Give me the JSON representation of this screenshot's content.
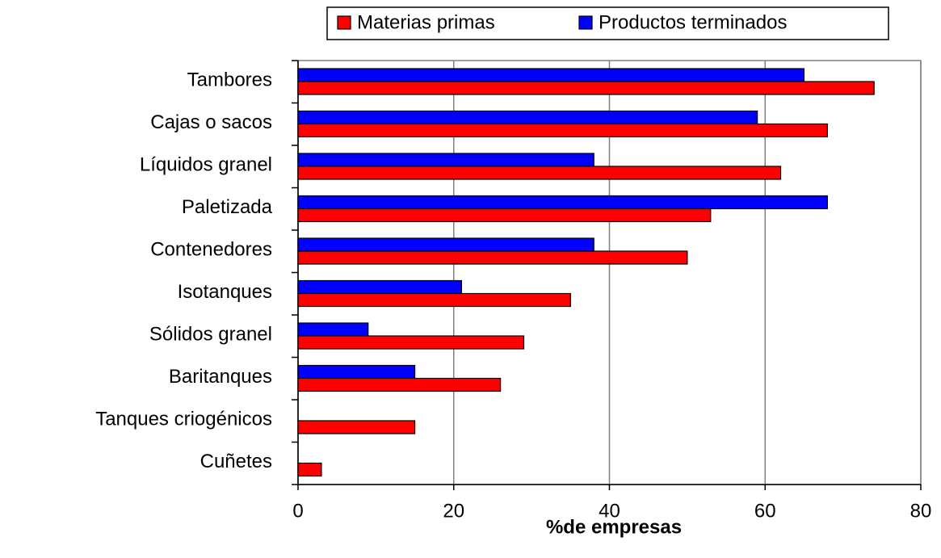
{
  "chart_data": {
    "type": "bar",
    "orientation": "horizontal",
    "x_label": "%de empresas",
    "categories": [
      "Tambores",
      "Cajas o sacos",
      "Líquidos granel",
      "Paletizada",
      "Contenedores",
      "Isotanques",
      "Sólidos granel",
      "Baritanques",
      "Tanques criogénicos",
      "Cuñetes"
    ],
    "series": [
      {
        "name": "Materias primas",
        "color": "#ff0000",
        "values": [
          74,
          68,
          62,
          53,
          50,
          35,
          29,
          26,
          15,
          3
        ]
      },
      {
        "name": "Productos terminados",
        "color": "#0000ff",
        "values": [
          65,
          59,
          38,
          68,
          38,
          21,
          9,
          15,
          0,
          0
        ]
      }
    ],
    "xlim": [
      0,
      80
    ],
    "xticks": [
      0,
      20,
      40,
      60,
      80
    ],
    "grid": true,
    "legend": "top"
  }
}
